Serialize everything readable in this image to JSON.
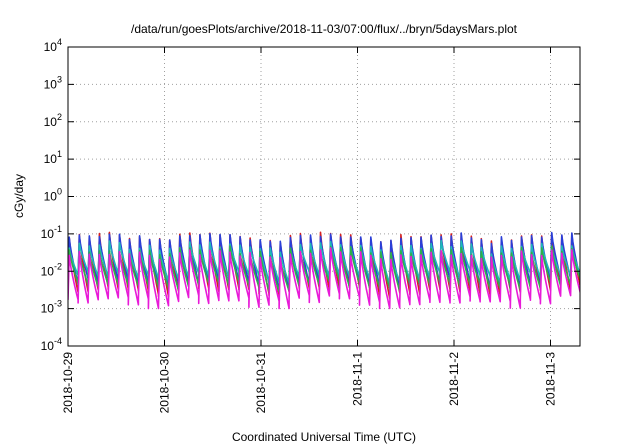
{
  "chart_data": {
    "type": "line",
    "title": "/data/run/goesPlots/archive/2018-11-03/07:00/flux/../bryn/5daysMars.plot",
    "xlabel": "Coordinated Universal Time (UTC)",
    "ylabel": "cGy/day",
    "yscale": "log",
    "ylim": [
      0.0001,
      10000
    ],
    "xlim": [
      "2018-10-29 00:00",
      "2018-11-03 07:00"
    ],
    "grid": true,
    "x_ticks": [
      "2018-10-29",
      "2018-10-30",
      "2018-10-31",
      "2018-11-1",
      "2018-11-2",
      "2018-11-3"
    ],
    "y_ticks": [
      {
        "base": "10",
        "exp": "-4"
      },
      {
        "base": "10",
        "exp": "-3"
      },
      {
        "base": "10",
        "exp": "-2"
      },
      {
        "base": "10",
        "exp": "-1"
      },
      {
        "base": "10",
        "exp": "0"
      },
      {
        "base": "10",
        "exp": "1"
      },
      {
        "base": "10",
        "exp": "2"
      },
      {
        "base": "10",
        "exp": "3"
      },
      {
        "base": "10",
        "exp": "4"
      }
    ],
    "cycle_hours": 2.5,
    "series": [
      {
        "color": "#d62020",
        "peak": [
          0.08,
          0.1
        ],
        "trough": [
          0.0025,
          0.004
        ]
      },
      {
        "color": "#2a3fd8",
        "peak": [
          0.075,
          0.095
        ],
        "trough": [
          0.004,
          0.006
        ]
      },
      {
        "color": "#1fb8b8",
        "peak": [
          0.04,
          0.06
        ],
        "trough": [
          0.006,
          0.009
        ]
      },
      {
        "color": "#2fae4a",
        "peak": [
          0.03,
          0.045
        ],
        "trough": [
          0.0035,
          0.005
        ]
      },
      {
        "color": "#e81ad8",
        "peak": [
          0.025,
          0.035
        ],
        "trough": [
          0.0012,
          0.0022
        ]
      }
    ]
  }
}
